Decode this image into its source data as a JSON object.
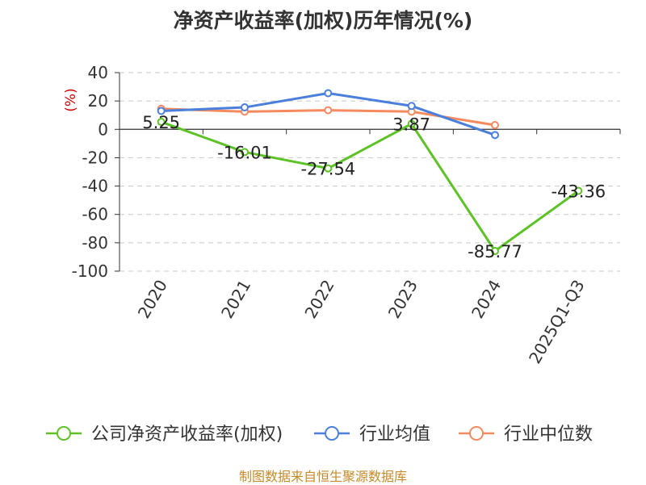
{
  "title": "净资产收益率(加权)历年情况(%)",
  "source": "制图数据来自恒生聚源数据库",
  "chart_data": {
    "type": "line",
    "title": "净资产收益率(加权)历年情况(%)",
    "ylabel": "(%)",
    "ylabel_color": "#cc0000",
    "categories": [
      "2020",
      "2021",
      "2022",
      "2023",
      "2024",
      "2025Q1-Q3"
    ],
    "ylim": [
      -100,
      40
    ],
    "yticks": [
      40,
      20,
      0,
      -20,
      -40,
      -60,
      -80,
      -100
    ],
    "grid": true,
    "legend_position": "bottom",
    "series": [
      {
        "name": "公司净资产收益率(加权)",
        "color": "#5cc226",
        "values": [
          5.25,
          -16.01,
          -27.54,
          3.87,
          -85.77,
          -43.36
        ],
        "labels": [
          "5.25",
          "-16.01",
          "-27.54",
          "3.87",
          "-85.77",
          "-43.36"
        ]
      },
      {
        "name": "行业均值",
        "color": "#4a7fdc",
        "values": [
          13,
          15.5,
          25.5,
          16.5,
          -4,
          null
        ]
      },
      {
        "name": "行业中位数",
        "color": "#f58a5e",
        "values": [
          14.5,
          12.5,
          13.5,
          12.5,
          3,
          null
        ]
      }
    ]
  }
}
